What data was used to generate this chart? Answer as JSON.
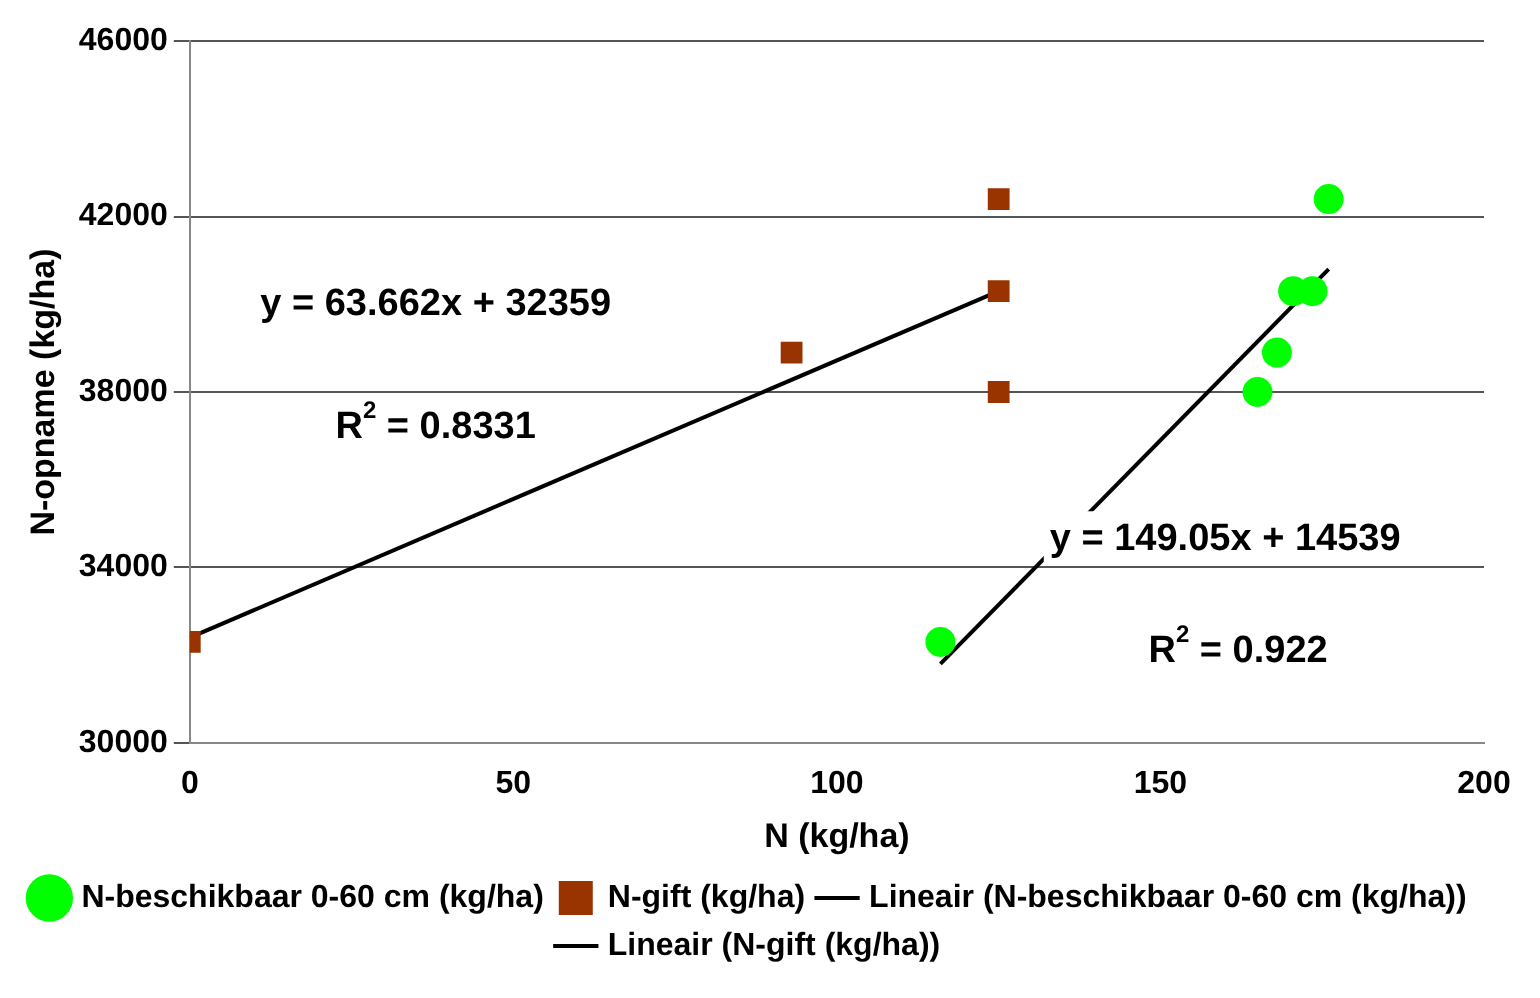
{
  "chart_data": {
    "type": "scatter",
    "xlabel": "N (kg/ha)",
    "ylabel": "N-opname (kg/ha)",
    "xlim": [
      0,
      200
    ],
    "xticks": [
      0,
      50,
      100,
      150,
      200
    ],
    "ylim": [
      30000,
      46000
    ],
    "yticks": [
      30000,
      34000,
      38000,
      42000,
      46000
    ],
    "grid": "y",
    "legend": "bottom",
    "series": [
      {
        "name": "N-beschikbaar 0-60 cm (kg/ha)",
        "type": "scatter",
        "marker": "circle",
        "color": "#00ff00",
        "x": [
          116,
          165,
          168,
          170.5,
          173.5,
          176
        ],
        "values": [
          32300,
          38000,
          38900,
          40300,
          40300,
          42400
        ]
      },
      {
        "name": "N-gift (kg/ha)",
        "type": "scatter",
        "marker": "square",
        "color": "#993300",
        "x": [
          0,
          93,
          125,
          125,
          125
        ],
        "values": [
          32300,
          38900,
          42400,
          40300,
          38000
        ]
      },
      {
        "name": "Lineair (N-beschikbaar 0-60 cm (kg/ha))",
        "type": "line",
        "marker": "none",
        "color": "#000000",
        "x": [
          116,
          176
        ],
        "values": [
          31800,
          40800
        ]
      },
      {
        "name": "Lineair (N-gift (kg/ha))",
        "type": "line",
        "marker": "none",
        "color": "#000000",
        "x": [
          0,
          125
        ],
        "values": [
          32400,
          40300
        ]
      }
    ],
    "annotations": [
      "y = 63.662x + 32359",
      "R$^{2}$ = 0.8331",
      "y = 149.05x + 14539",
      "R$^{2}$ = 0.922"
    ]
  }
}
